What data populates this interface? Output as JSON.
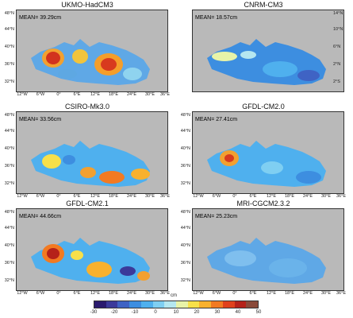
{
  "panels": [
    {
      "title": "UKMO-HadCM3",
      "mean": "MEAN= 39.29cm",
      "lat_labels": [
        "48°N",
        "44°N",
        "40°N",
        "36°N",
        "32°N"
      ],
      "lon_labels": [
        "12°W",
        "6°W",
        "0°",
        "6°E",
        "12°E",
        "18°E",
        "24°E",
        "30°E",
        "36°E"
      ]
    },
    {
      "title": "CNRM-CM3",
      "mean": "MEAN= 18.57cm",
      "lat_labels": [
        "14°N",
        "10°N",
        "6°N",
        "2°N",
        "2°S"
      ],
      "lon_labels": []
    },
    {
      "title": "CSIRO-Mk3.0",
      "mean": "MEAN= 33.56cm",
      "lat_labels": [
        "48°N",
        "44°N",
        "40°N",
        "36°N",
        "32°N"
      ],
      "lon_labels": [
        "12°W",
        "6°W",
        "0°",
        "6°E",
        "12°E",
        "18°E",
        "24°E",
        "30°E",
        "36°E"
      ]
    },
    {
      "title": "GFDL-CM2.0",
      "mean": "MEAN= 27.41cm",
      "lat_labels": [
        "48°N",
        "44°N",
        "40°N",
        "36°N",
        "32°N"
      ],
      "lon_labels": [
        "12°W",
        "6°W",
        "0°",
        "6°E",
        "12°E",
        "18°E",
        "24°E",
        "30°E",
        "36°E"
      ]
    },
    {
      "title": "GFDL-CM2.1",
      "mean": "MEAN= 44.66cm",
      "lat_labels": [
        "48°N",
        "44°N",
        "40°N",
        "36°N",
        "32°N"
      ],
      "lon_labels": [
        "12°W",
        "6°W",
        "0°",
        "6°E",
        "12°E",
        "18°E",
        "24°E",
        "30°E",
        "36°E"
      ]
    },
    {
      "title": "MRI-CGCM2.3.2",
      "mean": "MEAN= 25.23cm",
      "lat_labels": [
        "48°N",
        "44°N",
        "40°N",
        "36°N",
        "32°N"
      ],
      "lon_labels": [
        "12°W",
        "6°W",
        "0°",
        "6°E",
        "12°E",
        "18°E",
        "24°E",
        "30°E",
        "36°E"
      ]
    }
  ],
  "colorbar": {
    "unit": "cm",
    "ticks": [
      "-30",
      "-20",
      "-10",
      "0",
      "10",
      "20",
      "30",
      "40",
      "50"
    ],
    "colors": [
      "#2a1a6e",
      "#3b3a9a",
      "#3f63c4",
      "#3d8ee0",
      "#4fb0ee",
      "#7fcff2",
      "#b5e7f0",
      "#e8f3a8",
      "#f7e04a",
      "#f8b12e",
      "#f27a22",
      "#e0411c",
      "#b5221a",
      "#8a4a3a"
    ]
  },
  "colors": {
    "land": "#b9b9b9",
    "sea_base": "#5fa8e6"
  }
}
